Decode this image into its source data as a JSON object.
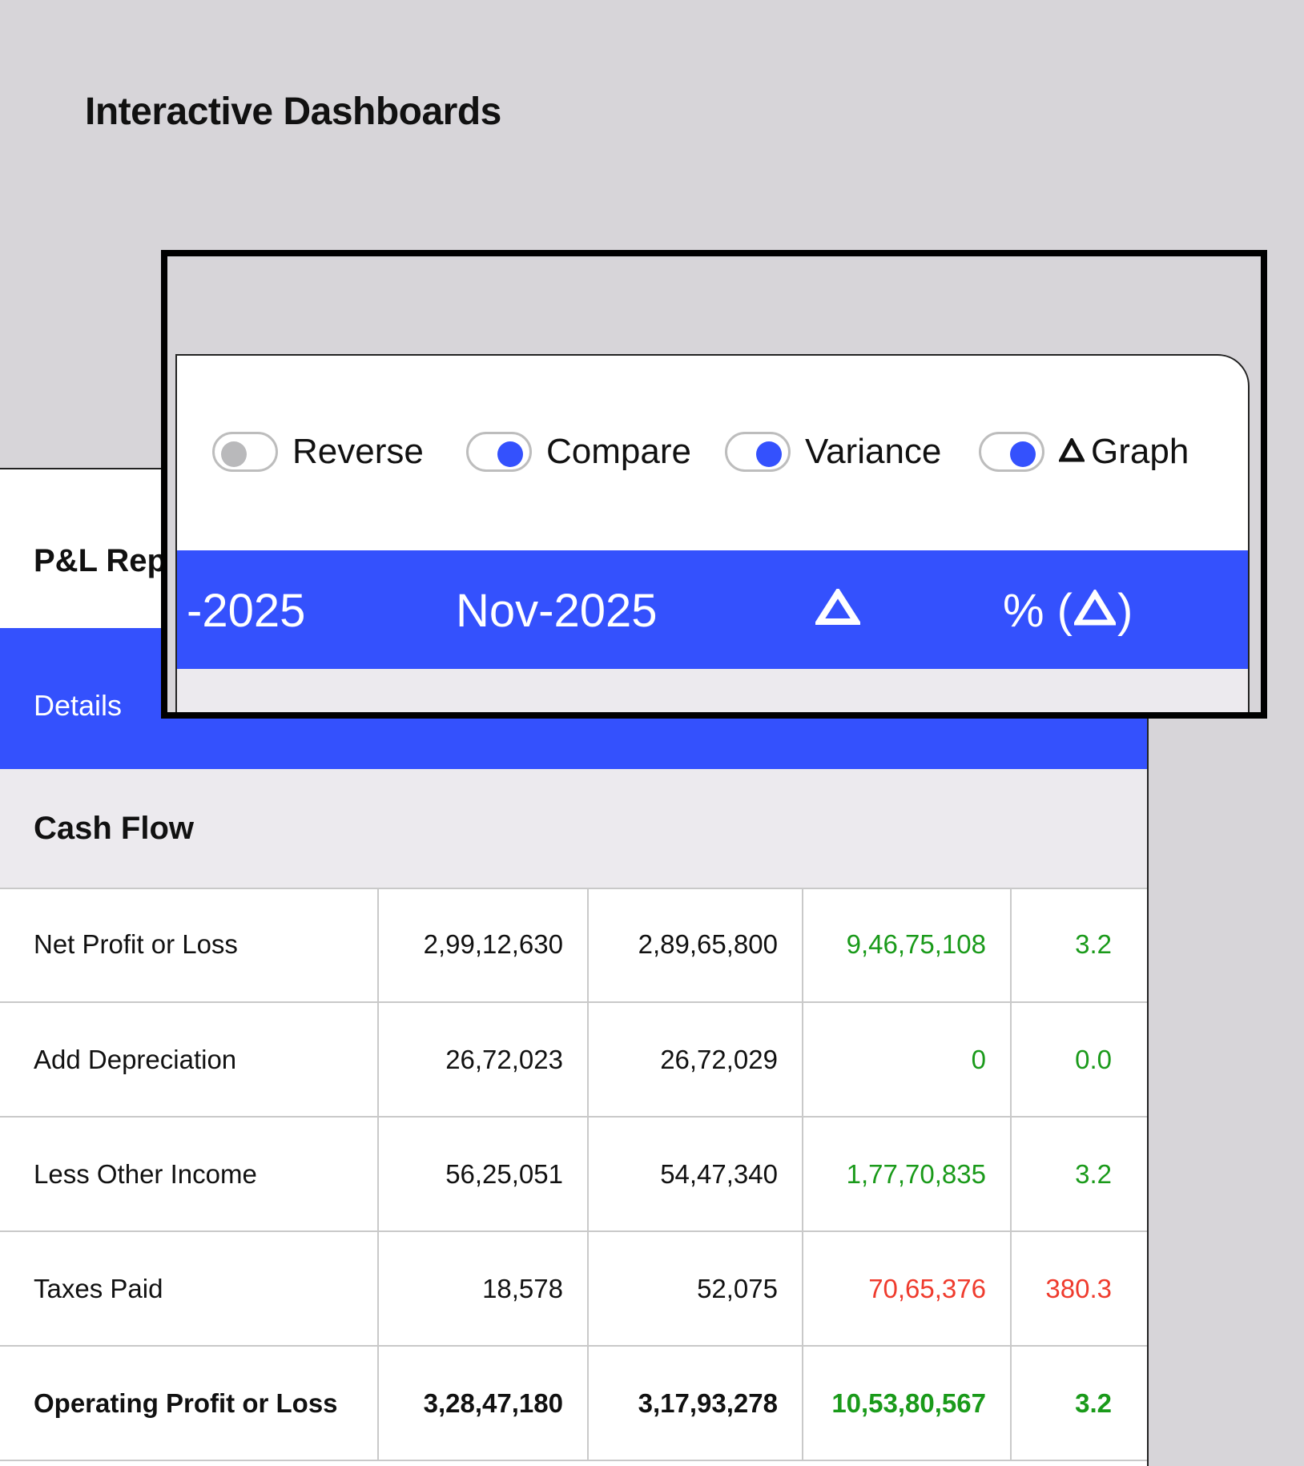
{
  "page_title": "Interactive Dashboards",
  "report": {
    "title": "P&L Repo",
    "details_label": "Details",
    "section_title": "Cash Flow",
    "rows": [
      {
        "label": "Net Profit or Loss",
        "a": "2,99,12,630",
        "b": "2,89,65,800",
        "variance": "9,46,75,108",
        "pct": "3.2",
        "status": "pos",
        "bold": false
      },
      {
        "label": "Add Depreciation",
        "a": "26,72,023",
        "b": "26,72,029",
        "variance": "0",
        "pct": "0.0",
        "status": "pos",
        "bold": false
      },
      {
        "label": "Less Other Income",
        "a": "56,25,051",
        "b": "54,47,340",
        "variance": "1,77,70,835",
        "pct": "3.2",
        "status": "pos",
        "bold": false
      },
      {
        "label": "Taxes Paid",
        "a": "18,578",
        "b": "52,075",
        "variance": "70,65,376",
        "pct": "380.3",
        "status": "neg",
        "bold": false
      },
      {
        "label": "Operating Profit or Loss",
        "a": "3,28,47,180",
        "b": "3,17,93,278",
        "variance": "10,53,80,567",
        "pct": "3.2",
        "status": "pos",
        "bold": true
      }
    ]
  },
  "toggles": {
    "reverse": {
      "label": "Reverse",
      "on": false
    },
    "compare": {
      "label": "Compare",
      "on": true
    },
    "variance": {
      "label": "Variance",
      "on": true
    },
    "graph": {
      "label": "Graph",
      "on": true,
      "icon": "delta-icon"
    }
  },
  "zoom_header": {
    "col1": "-2025",
    "col2": "Nov-2025",
    "col3_icon": "delta-icon",
    "col4_prefix": "% (",
    "col4_suffix": ")"
  },
  "colors": {
    "accent": "#3451fd",
    "positive": "#1a9a1a",
    "negative": "#ef3b2d",
    "background": "#d7d5d9"
  }
}
